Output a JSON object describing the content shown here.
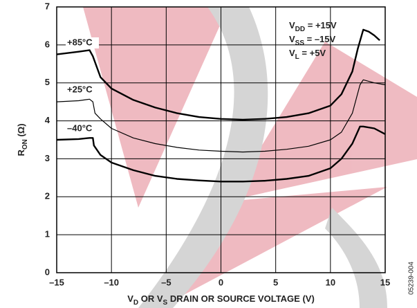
{
  "chart_data": {
    "type": "line",
    "ylabel": [
      "R",
      "ON",
      " (Ω)"
    ],
    "xlabel": [
      "V",
      "D",
      " OR V",
      "S",
      " DRAIN OR SOURCE VOLTAGE (V)"
    ],
    "annotations": [
      [
        "V",
        "DD",
        " = +15V"
      ],
      [
        "V",
        "SS",
        " = –15V"
      ],
      [
        "V",
        "L",
        " = +5V"
      ]
    ],
    "figure_id": "05239-004",
    "xlim": [
      -15,
      15
    ],
    "xticks": [
      {
        "value": -15,
        "label": "–15"
      },
      {
        "value": -10,
        "label": "–10"
      },
      {
        "value": -5,
        "label": "–5"
      },
      0,
      5,
      10,
      15
    ],
    "ylim": [
      0,
      7
    ],
    "yticks": [
      0,
      1,
      2,
      3,
      4,
      5,
      6,
      7
    ],
    "grid": true,
    "series": [
      {
        "name": "+85°C",
        "color": "#000000",
        "width": 2.4,
        "x": [
          -15,
          -13,
          -12,
          -11.7,
          -11,
          -10,
          -8,
          -6,
          -4,
          -2,
          0,
          2,
          4,
          6,
          8,
          10,
          11,
          12,
          12.5,
          13,
          13.5,
          14,
          14.5
        ],
        "values": [
          5.75,
          5.82,
          5.86,
          5.7,
          5.15,
          4.85,
          4.55,
          4.35,
          4.2,
          4.1,
          4.05,
          4.03,
          4.05,
          4.1,
          4.2,
          4.4,
          4.7,
          5.3,
          5.9,
          6.4,
          6.35,
          6.25,
          6.12
        ]
      },
      {
        "name": "+25°C",
        "color": "#000000",
        "width": 1.2,
        "x": [
          -15,
          -13,
          -12,
          -11.7,
          -11.5,
          -11,
          -10,
          -8,
          -6,
          -4,
          -2,
          0,
          2,
          4,
          6,
          8,
          10,
          11,
          12,
          12.7,
          13,
          14,
          15
        ],
        "values": [
          4.5,
          4.53,
          4.57,
          4.5,
          4.2,
          4.05,
          3.8,
          3.55,
          3.4,
          3.3,
          3.23,
          3.2,
          3.18,
          3.2,
          3.25,
          3.33,
          3.5,
          3.7,
          4.2,
          4.95,
          5.08,
          5.0,
          4.95
        ]
      },
      {
        "name": "–40°C",
        "color": "#000000",
        "width": 2.4,
        "x": [
          -15,
          -13,
          -12,
          -11.7,
          -11.6,
          -11,
          -10,
          -8,
          -6,
          -4,
          -2,
          0,
          2,
          4,
          6,
          8,
          10,
          11,
          12,
          12.7,
          13,
          14,
          15
        ],
        "values": [
          3.5,
          3.52,
          3.55,
          3.55,
          3.35,
          3.1,
          2.9,
          2.7,
          2.55,
          2.47,
          2.43,
          2.4,
          2.4,
          2.42,
          2.47,
          2.55,
          2.75,
          3.0,
          3.4,
          3.85,
          3.85,
          3.8,
          3.65
        ]
      }
    ]
  }
}
